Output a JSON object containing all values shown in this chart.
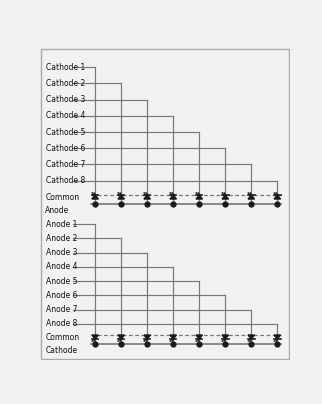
{
  "top_labels": [
    "Cathode 1",
    "Cathode 2",
    "Cathode 3",
    "Cathode 4",
    "Cathode 5",
    "Cathode 6",
    "Cathode 7",
    "Cathode 8"
  ],
  "top_common_line1": "Common",
  "top_common_line2": "Anode",
  "bottom_labels": [
    "Anode 1",
    "Anode 2",
    "Anode 3",
    "Anode 4",
    "Anode 5",
    "Anode 6",
    "Anode 7",
    "Anode 8"
  ],
  "bottom_common_line1": "Common",
  "bottom_common_line2": "Cathode",
  "bg_color": "#f2f2f2",
  "line_color": "#777777",
  "led_color": "#1a1a1a",
  "text_color": "#111111",
  "border_color": "#aaaaaa",
  "n_leds": 8,
  "fig_width": 3.22,
  "fig_height": 4.04,
  "dpi": 100
}
